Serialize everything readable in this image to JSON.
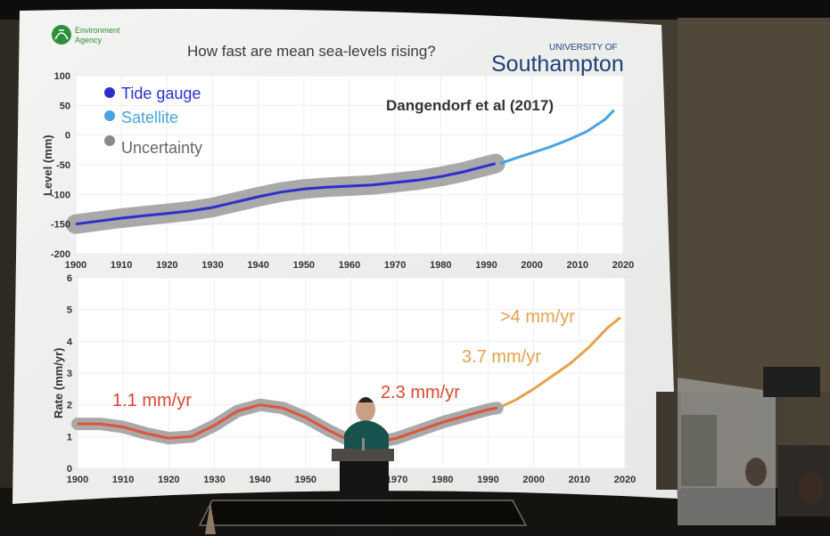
{
  "slide": {
    "logo_left_line1": "Environment",
    "logo_left_line2": "Agency",
    "title": "How fast are mean sea-levels rising?",
    "logo_right_line1": "UNIVERSITY OF",
    "logo_right_line2": "Southampton"
  },
  "chart_data": [
    {
      "type": "line",
      "ylabel": "Level (mm)",
      "xlim": [
        1900,
        2020
      ],
      "ylim": [
        -200,
        100
      ],
      "x_ticks": [
        "1900",
        "1910",
        "1920",
        "1930",
        "1940",
        "1950",
        "1960",
        "1970",
        "1980",
        "1990",
        "2000",
        "2010",
        "2020"
      ],
      "y_ticks": [
        "100",
        "50",
        "0",
        "-50",
        "-100",
        "-150",
        "-200"
      ],
      "annotation": "Dangendorf et al (2017)",
      "legend": [
        "Tide gauge",
        "Satellite",
        "Uncertainty"
      ],
      "series": [
        {
          "name": "Tide gauge",
          "color": "#2c2fd0",
          "x": [
            1900,
            1905,
            1910,
            1915,
            1920,
            1925,
            1930,
            1935,
            1940,
            1945,
            1950,
            1955,
            1960,
            1965,
            1970,
            1975,
            1980,
            1985,
            1990,
            1992
          ],
          "y": [
            -150,
            -145,
            -140,
            -136,
            -132,
            -128,
            -122,
            -113,
            -104,
            -96,
            -91,
            -88,
            -86,
            -84,
            -80,
            -76,
            -70,
            -62,
            -52,
            -48
          ]
        },
        {
          "name": "Satellite",
          "color": "#49a3df",
          "x": [
            1993,
            1996,
            2000,
            2004,
            2008,
            2012,
            2016,
            2018
          ],
          "y": [
            -48,
            -40,
            -30,
            -20,
            -8,
            6,
            26,
            42
          ]
        }
      ]
    },
    {
      "type": "line",
      "ylabel": "Rate (mm/yr)",
      "xlim": [
        1900,
        2020
      ],
      "ylim": [
        0,
        6
      ],
      "x_ticks": [
        "1900",
        "1910",
        "1920",
        "1930",
        "1940",
        "1950",
        "1960",
        "1970",
        "1980",
        "1990",
        "2000",
        "2010",
        "2020"
      ],
      "y_ticks": [
        "6",
        "5",
        "4",
        "3",
        "2",
        "1",
        "0"
      ],
      "annotations": [
        "1.1 mm/yr",
        "2.3 mm/yr",
        "3.7 mm/yr",
        ">4 mm/yr"
      ],
      "series": [
        {
          "name": "Tide gauge",
          "color": "#e0533a",
          "x": [
            1900,
            1905,
            1910,
            1915,
            1920,
            1925,
            1930,
            1935,
            1940,
            1945,
            1950,
            1955,
            1960,
            1965,
            1970,
            1975,
            1980,
            1985,
            1990,
            1992
          ],
          "y": [
            1.4,
            1.4,
            1.3,
            1.1,
            0.95,
            1.0,
            1.35,
            1.8,
            2.0,
            1.9,
            1.6,
            1.2,
            0.85,
            0.8,
            0.95,
            1.2,
            1.45,
            1.65,
            1.85,
            1.9
          ]
        },
        {
          "name": "Satellite",
          "color": "#e3a24b",
          "x": [
            1993,
            1996,
            2000,
            2004,
            2008,
            2012,
            2016,
            2019
          ],
          "y": [
            1.95,
            2.15,
            2.5,
            2.9,
            3.3,
            3.8,
            4.4,
            4.75
          ]
        }
      ]
    }
  ]
}
